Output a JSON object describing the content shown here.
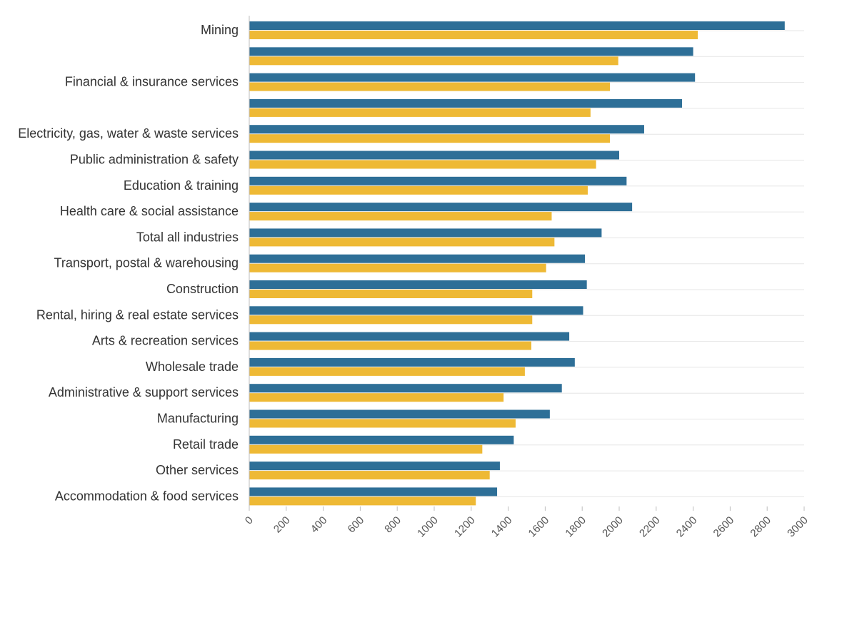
{
  "chart_data": {
    "type": "bar",
    "orientation": "horizontal",
    "categories": [
      "Mining",
      "",
      "Financial & insurance services",
      "",
      "Electricity, gas, water & waste services",
      "Public administration & safety",
      "Education & training",
      "Health care & social assistance",
      "Total all industries",
      "Transport, postal & warehousing",
      "Construction",
      "Rental, hiring & real estate services",
      "Arts & recreation services",
      "Wholesale trade",
      "Administrative & support services",
      "Manufacturing",
      "Retail trade",
      "Other services",
      "Accommodation & food services"
    ],
    "series": [
      {
        "color": "#2e6f97",
        "values": [
          2895,
          2400,
          2410,
          2340,
          2135,
          2000,
          2040,
          2070,
          1905,
          1815,
          1825,
          1805,
          1730,
          1760,
          1690,
          1625,
          1430,
          1355,
          1340
        ]
      },
      {
        "color": "#eeb935",
        "values": [
          2425,
          1995,
          1950,
          1845,
          1950,
          1875,
          1830,
          1635,
          1650,
          1605,
          1530,
          1530,
          1525,
          1490,
          1375,
          1440,
          1260,
          1300,
          1225
        ]
      }
    ],
    "xlim": [
      0,
      3000
    ],
    "xticks": [
      0,
      200,
      400,
      600,
      800,
      1000,
      1200,
      1400,
      1600,
      1800,
      2000,
      2200,
      2400,
      2600,
      2800,
      3000
    ],
    "title": "",
    "xlabel": "",
    "ylabel": "",
    "grid": "horizontal",
    "legend": "none"
  }
}
